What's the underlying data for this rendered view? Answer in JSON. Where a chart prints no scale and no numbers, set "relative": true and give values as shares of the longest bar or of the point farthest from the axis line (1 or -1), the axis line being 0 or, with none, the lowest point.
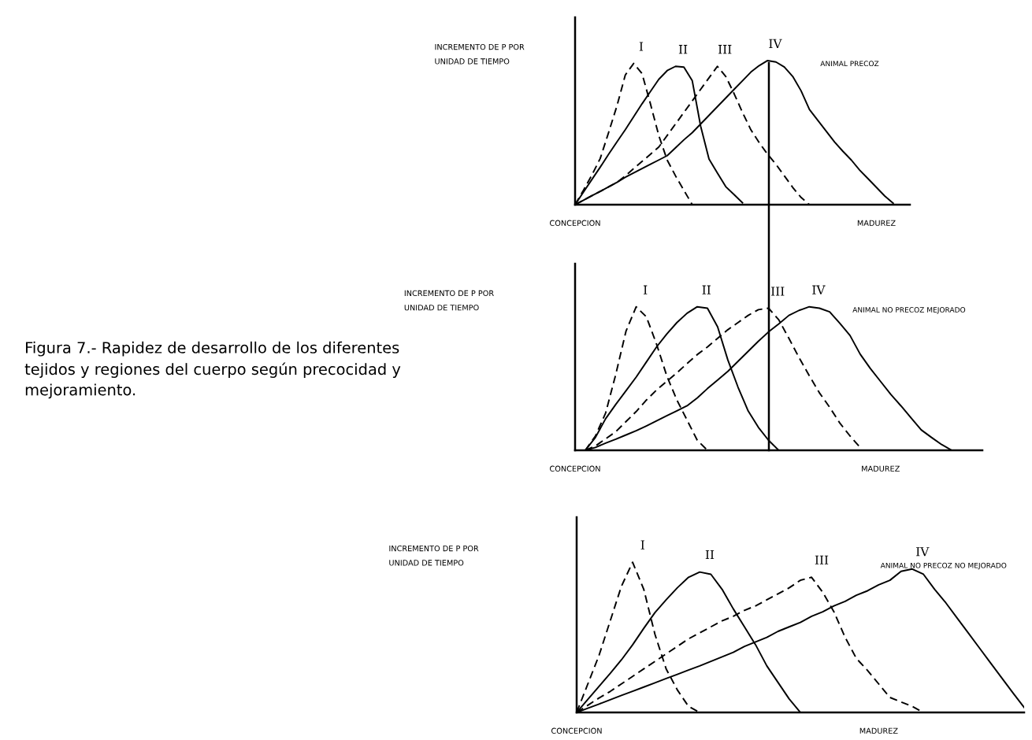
{
  "chart_data": [
    {
      "type": "other",
      "title": "Figura 7.- Rapidez de desarrollo de los diferentes tejidos y regiones del cuerpo según precocidad y mejoramiento."
    },
    {
      "type": "line",
      "relative": true,
      "ylabel": "INCREMENTO DE P POR\nUNIDAD DE TIEMPO",
      "categories": [
        "CONCEPCION",
        null,
        null,
        null,
        null,
        null,
        null,
        null,
        null,
        null,
        null,
        null,
        null,
        null,
        null,
        null,
        null,
        null,
        null,
        null,
        null,
        null,
        null,
        null,
        null,
        null,
        null,
        null,
        null,
        null,
        null,
        null,
        null,
        null,
        null,
        null,
        "MADUREZ",
        null,
        null,
        null,
        null
      ],
      "tick_labels": "x",
      "marker": "none",
      "grid": false,
      "legend": false,
      "annotations": [
        "ANIMAL PRECOZ"
      ],
      "series": [
        {
          "name": "I",
          "color": "#000000",
          "line_style": "dashed",
          "values": [
            0,
            0.1,
            0.205,
            0.32,
            0.5,
            0.685,
            0.9,
            0.98,
            0.91,
            0.7,
            0.48,
            0.31,
            0.2,
            0.1,
            0,
            null,
            null,
            null,
            null,
            null,
            null,
            null,
            null,
            null,
            null,
            null,
            null,
            null,
            null,
            null,
            null,
            null,
            null,
            null,
            null,
            null,
            null,
            null,
            null,
            null,
            null
          ]
        },
        {
          "name": "II",
          "color": "#000000",
          "line_style": "solid",
          "values": [
            0,
            0.087,
            0.174,
            0.26,
            0.35,
            0.436,
            0.52,
            0.61,
            0.7,
            0.785,
            0.87,
            0.93,
            0.96,
            0.955,
            0.86,
            0.545,
            0.317,
            0.22,
            0.125,
            0.07,
            0.013,
            null,
            null,
            null,
            null,
            null,
            null,
            null,
            null,
            null,
            null,
            null,
            null,
            null,
            null,
            null,
            null,
            null,
            null,
            null,
            null
          ]
        },
        {
          "name": "III",
          "color": "#000000",
          "line_style": "dashed",
          "values": [
            0,
            0.031,
            0.062,
            0.092,
            0.123,
            0.155,
            0.2,
            0.25,
            0.3,
            0.35,
            0.4,
            0.48,
            0.56,
            0.64,
            0.72,
            0.8,
            0.88,
            0.96,
            0.89,
            0.77,
            0.64,
            0.52,
            0.43,
            0.35,
            0.28,
            0.2,
            0.12,
            0.05,
            0,
            null,
            null,
            null,
            null,
            null,
            null,
            null,
            null,
            null,
            null,
            null,
            null
          ]
        },
        {
          "name": "IV",
          "color": "#000000",
          "line_style": "solid",
          "values": [
            0,
            0.031,
            0.062,
            0.092,
            0.123,
            0.155,
            0.19,
            0.22,
            0.25,
            0.28,
            0.31,
            0.34,
            0.395,
            0.45,
            0.5,
            0.56,
            0.62,
            0.68,
            0.74,
            0.8,
            0.86,
            0.92,
            0.965,
            1.0,
            0.99,
            0.955,
            0.89,
            0.79,
            0.66,
            0.585,
            0.51,
            0.435,
            0.37,
            0.31,
            0.24,
            0.18,
            0.12,
            0.06,
            0.01,
            null,
            null
          ]
        }
      ]
    },
    {
      "type": "line",
      "relative": true,
      "ylabel": "INCREMENTO DE P POR\nUNIDAD DE TIEMPO",
      "categories": [
        "CONCEPCION",
        null,
        null,
        null,
        null,
        null,
        null,
        null,
        null,
        null,
        null,
        null,
        null,
        null,
        null,
        null,
        null,
        null,
        null,
        null,
        null,
        null,
        null,
        null,
        null,
        null,
        null,
        null,
        null,
        null,
        "MADUREZ",
        null,
        null,
        null,
        null,
        null,
        null,
        null,
        null,
        null,
        null
      ],
      "tick_labels": "x",
      "marker": "none",
      "grid": false,
      "legend": false,
      "annotations": [
        "ANIMAL NO PRECOZ MEJORADO"
      ],
      "series": [
        {
          "name": "I",
          "color": "#000000",
          "line_style": "dashed",
          "values": [
            null,
            0,
            0.1,
            0.26,
            0.53,
            0.83,
            1.0,
            0.93,
            0.74,
            0.52,
            0.35,
            0.21,
            0.07,
            0,
            null,
            null,
            null,
            null,
            null,
            null,
            null,
            null,
            null,
            null,
            null,
            null,
            null,
            null,
            null,
            null,
            null,
            null,
            null,
            null,
            null,
            null,
            null,
            null,
            null,
            null,
            null
          ]
        },
        {
          "name": "II",
          "color": "#000000",
          "line_style": "solid",
          "values": [
            null,
            0,
            0.09,
            0.22,
            0.32,
            0.415,
            0.51,
            0.615,
            0.72,
            0.81,
            0.89,
            0.955,
            1.0,
            0.99,
            0.86,
            0.63,
            0.44,
            0.274,
            0.16,
            0.07,
            0,
            null,
            null,
            null,
            null,
            null,
            null,
            null,
            null,
            null,
            null,
            null,
            null,
            null,
            null,
            null,
            null,
            null,
            null,
            null,
            null
          ]
        },
        {
          "name": "III",
          "color": "#000000",
          "line_style": "dashed",
          "values": [
            null,
            0,
            0.03,
            0.08,
            0.13,
            0.2,
            0.27,
            0.35,
            0.42,
            0.48,
            0.54,
            0.605,
            0.667,
            0.72,
            0.78,
            0.84,
            0.89,
            0.94,
            0.98,
            0.99,
            0.91,
            0.78,
            0.645,
            0.52,
            0.4,
            0.3,
            0.19,
            0.1,
            0.02,
            null,
            null,
            null,
            null,
            null,
            null,
            null,
            null,
            null,
            null,
            null,
            null
          ]
        },
        {
          "name": "IV",
          "color": "#000000",
          "line_style": "solid",
          "values": [
            null,
            0,
            0.02,
            0.05,
            0.077,
            0.107,
            0.136,
            0.17,
            0.205,
            0.24,
            0.275,
            0.31,
            0.365,
            0.43,
            0.49,
            0.55,
            0.62,
            0.69,
            0.76,
            0.825,
            0.88,
            0.94,
            0.975,
            1.0,
            0.99,
            0.965,
            0.885,
            0.8,
            0.67,
            0.57,
            0.48,
            0.39,
            0.31,
            0.225,
            0.142,
            0.09,
            0.04,
            0,
            null,
            null,
            null
          ]
        }
      ]
    },
    {
      "type": "line",
      "relative": true,
      "ylabel": "INCREMENTO DE P POR\nUNIDAD DE TIEMPO",
      "categories": [
        "CONCEPCION",
        null,
        null,
        null,
        null,
        null,
        null,
        null,
        null,
        null,
        null,
        null,
        null,
        null,
        null,
        null,
        null,
        null,
        null,
        null,
        null,
        null,
        null,
        null,
        null,
        null,
        null,
        "MADUREZ",
        null,
        null,
        null,
        null,
        null,
        null,
        null,
        null,
        null,
        null,
        null,
        null,
        null
      ],
      "tick_labels": "x",
      "marker": "none",
      "grid": false,
      "legend": false,
      "annotations": [
        "ANIMAL NO PRECOZ NO MEJORADO"
      ],
      "series": [
        {
          "name": "I",
          "color": "#000000",
          "line_style": "dashed",
          "values": [
            0,
            0.19,
            0.38,
            0.61,
            0.84,
            1.0,
            0.82,
            0.52,
            0.29,
            0.15,
            0.04,
            0,
            null,
            null,
            null,
            null,
            null,
            null,
            null,
            null,
            null,
            null,
            null,
            null,
            null,
            null,
            null,
            null,
            null,
            null,
            null,
            null,
            null,
            null,
            null,
            null,
            null,
            null,
            null,
            null,
            null
          ]
        },
        {
          "name": "II",
          "color": "#000000",
          "line_style": "solid",
          "values": [
            0,
            0.087,
            0.174,
            0.26,
            0.35,
            0.45,
            0.56,
            0.665,
            0.75,
            0.83,
            0.9,
            0.935,
            0.92,
            0.82,
            0.69,
            0.57,
            0.45,
            0.31,
            0.2,
            0.09,
            0,
            null,
            null,
            null,
            null,
            null,
            null,
            null,
            null,
            null,
            null,
            null,
            null,
            null,
            null,
            null,
            null,
            null,
            null,
            null,
            null
          ]
        },
        {
          "name": "III",
          "color": "#000000",
          "line_style": "dashed",
          "values": [
            0,
            0.048,
            0.096,
            0.14,
            0.19,
            0.24,
            0.29,
            0.34,
            0.39,
            0.44,
            0.49,
            0.53,
            0.57,
            0.61,
            0.64,
            0.68,
            0.71,
            0.75,
            0.79,
            0.83,
            0.88,
            0.9,
            0.8,
            0.67,
            0.5,
            0.36,
            0.28,
            0.19,
            0.1,
            0.07,
            0.04,
            0,
            null,
            null,
            null,
            null,
            null,
            null,
            null,
            null,
            null
          ]
        },
        {
          "name": "IV",
          "color": "#000000",
          "line_style": "solid",
          "values": [
            0,
            0.028,
            0.056,
            0.085,
            0.113,
            0.141,
            0.169,
            0.197,
            0.226,
            0.254,
            0.282,
            0.31,
            0.34,
            0.37,
            0.4,
            0.44,
            0.47,
            0.5,
            0.54,
            0.57,
            0.6,
            0.64,
            0.67,
            0.71,
            0.74,
            0.78,
            0.81,
            0.85,
            0.88,
            0.94,
            0.955,
            0.92,
            0.82,
            0.73,
            0.63,
            0.53,
            0.43,
            0.33,
            0.23,
            0.13,
            0.033
          ]
        }
      ]
    }
  ]
}
